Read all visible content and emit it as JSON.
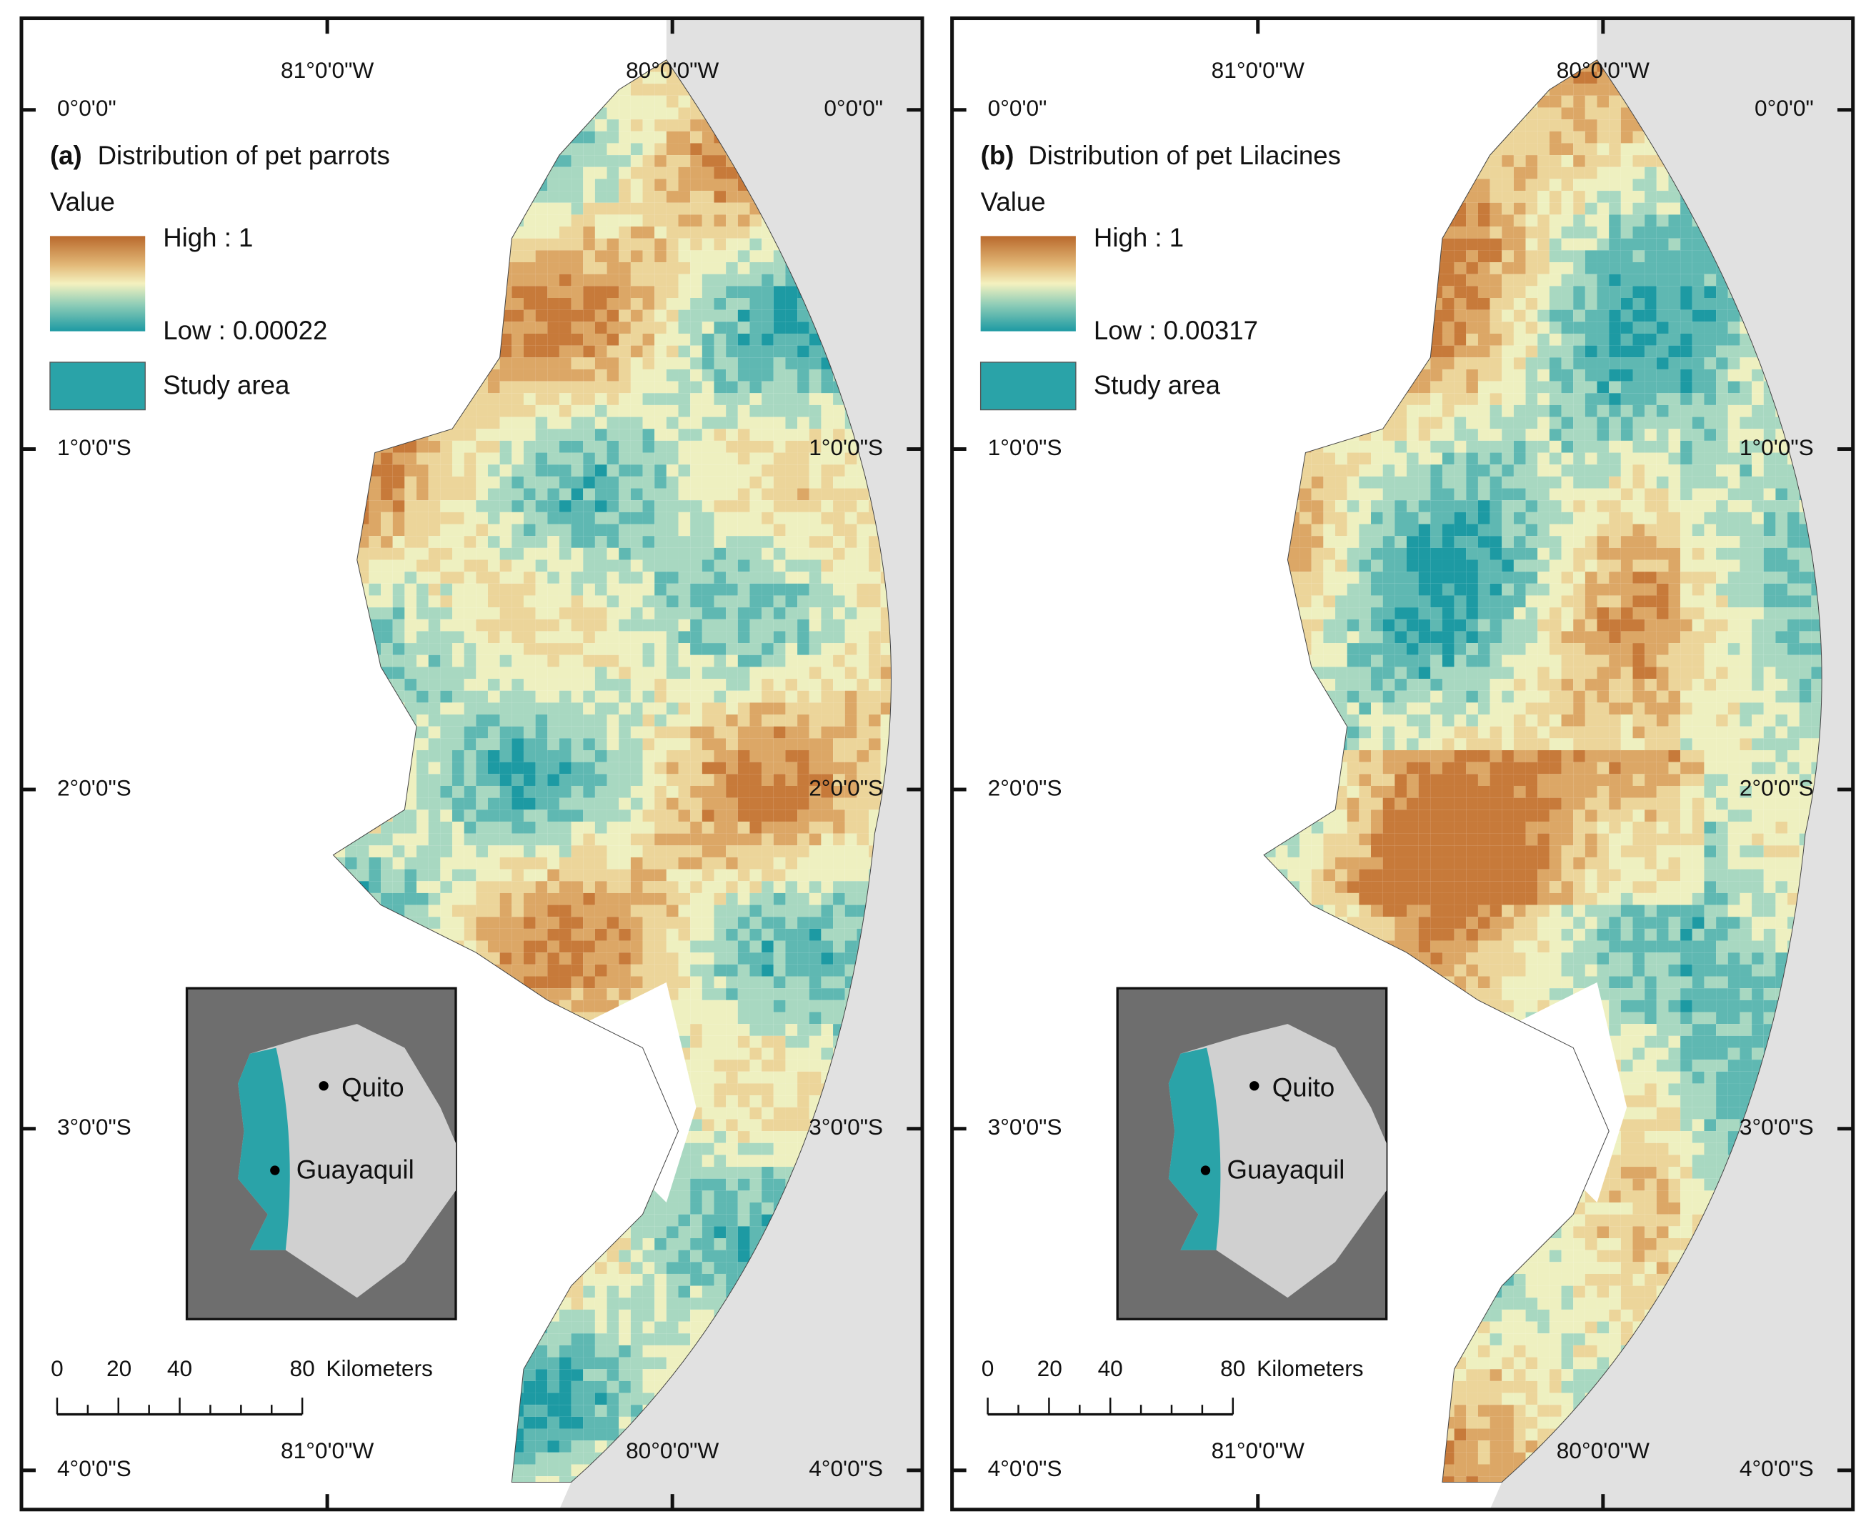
{
  "panels": [
    {
      "label": "(a)",
      "title": "Distribution of pet parrots",
      "legend": {
        "heading": "Value",
        "high": "High : 1",
        "low": "Low : 0.00022",
        "study_area": "Study area"
      },
      "lat_labels_left": [
        "0°0'0\"",
        "1°0'0\"S",
        "2°0'0\"S",
        "3°0'0\"S",
        "4°0'0\"S"
      ],
      "lat_labels_right": [
        "0°0'0\"",
        "1°0'0\"S",
        "2°0'0\"S",
        "3°0'0\"S",
        "4°0'0\"S"
      ],
      "lon_labels_top": [
        "81°0'0\"W",
        "80°0'0\"W"
      ],
      "lon_labels_bottom": [
        "81°0'0\"W",
        "80°0'0\"W"
      ],
      "scale_bar": {
        "ticks": [
          "0",
          "20",
          "40",
          "80"
        ],
        "unit": "Kilometers"
      },
      "inset": {
        "cities": [
          "Quito",
          "Guayaquil"
        ]
      }
    },
    {
      "label": "(b)",
      "title": "Distribution of pet Lilacines",
      "legend": {
        "heading": "Value",
        "high": "High : 1",
        "low": "Low : 0.00317",
        "study_area": "Study area"
      },
      "lat_labels_left": [
        "0°0'0\"",
        "1°0'0\"S",
        "2°0'0\"S",
        "3°0'0\"S",
        "4°0'0\"S"
      ],
      "lat_labels_right": [
        "0°0'0\"",
        "1°0'0\"S",
        "2°0'0\"S",
        "3°0'0\"S",
        "4°0'0\"S"
      ],
      "lon_labels_top": [
        "81°0'0\"W",
        "80°0'0\"W"
      ],
      "lon_labels_bottom": [
        "81°0'0\"W",
        "80°0'0\"W"
      ],
      "scale_bar": {
        "ticks": [
          "0",
          "20",
          "40",
          "80"
        ],
        "unit": "Kilometers"
      },
      "inset": {
        "cities": [
          "Quito",
          "Guayaquil"
        ]
      }
    }
  ]
}
